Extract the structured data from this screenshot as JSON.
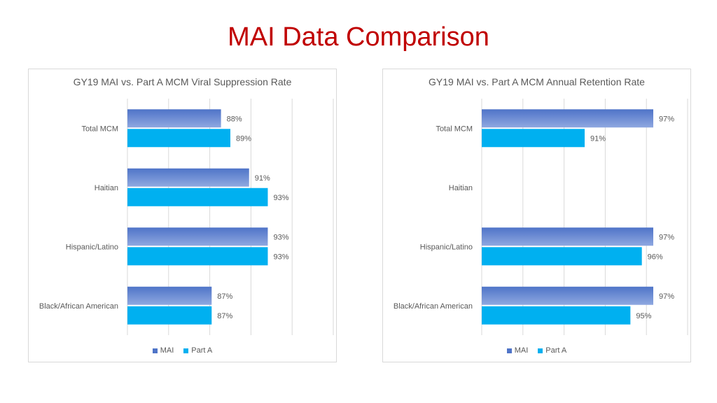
{
  "page": {
    "title": "MAI Data Comparison"
  },
  "colors": {
    "title": "#c00000",
    "mai": "#4f74c8",
    "mai_light": "#8fa8e0",
    "parta": "#00b0f0",
    "grid": "#d9d9d9",
    "text": "#595959"
  },
  "chart_data": [
    {
      "type": "bar",
      "orientation": "horizontal",
      "title": "GY19 MAI vs. Part A MCM Viral Suppression Rate",
      "categories": [
        "Total MCM",
        "Haitian",
        "Hispanic/Latino",
        "Black/African American"
      ],
      "series": [
        {
          "name": "MAI",
          "values": [
            88,
            91,
            93,
            87
          ],
          "labels": [
            "88%",
            "91%",
            "93%",
            "87%"
          ]
        },
        {
          "name": "Part A",
          "values": [
            89,
            93,
            93,
            87
          ],
          "labels": [
            "89%",
            "93%",
            "93%",
            "87%"
          ]
        }
      ],
      "xlim": [
        78,
        100
      ],
      "grid": true,
      "legend": "bottom"
    },
    {
      "type": "bar",
      "orientation": "horizontal",
      "title": "GY19 MAI vs. Part A MCM Annual Retention Rate",
      "categories": [
        "Total MCM",
        "Haitian",
        "Hispanic/Latino",
        "Black/African American"
      ],
      "series": [
        {
          "name": "MAI",
          "values": [
            97,
            null,
            97,
            97
          ],
          "labels": [
            "97%",
            "",
            "97%",
            "97%"
          ]
        },
        {
          "name": "Part A",
          "values": [
            91,
            null,
            96,
            95
          ],
          "labels": [
            "91%",
            "",
            "96%",
            "95%"
          ]
        }
      ],
      "xlim": [
        82,
        100
      ],
      "grid": true,
      "legend": "bottom"
    }
  ]
}
